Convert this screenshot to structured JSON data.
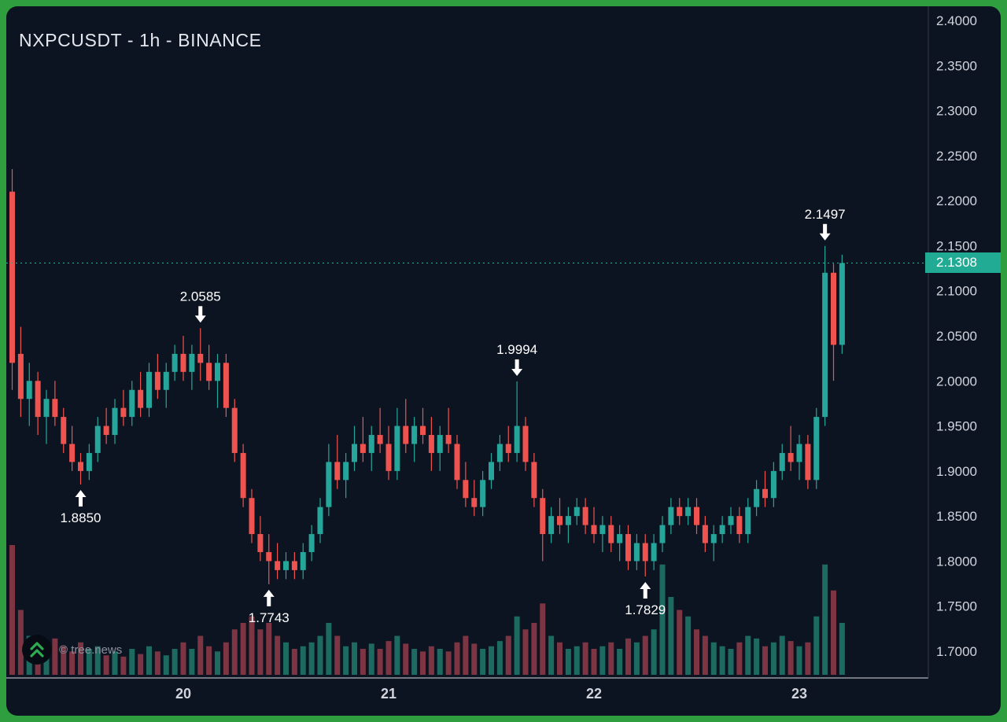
{
  "header": {
    "title": "NXPCUSDT - 1h - BINANCE"
  },
  "watermark": {
    "label": "© tree.news",
    "logo": "double-chevron-up-icon"
  },
  "colors": {
    "frame_green": "#2e9e3e",
    "background": "#0d1421",
    "bullish": "#26a69a",
    "bearish": "#ef5350",
    "volume_bullish": "#1d6a60",
    "volume_bearish": "#7d3543",
    "axis_text": "#d1d4dc",
    "axis_line": "#aeb2bc",
    "separator": "#363a45",
    "current_price": "#22ab94",
    "annotation": "#ffffff",
    "logo_green": "#2eac52"
  },
  "chart_data": {
    "type": "candlestick",
    "symbol": "NXPCUSDT",
    "interval": "1h",
    "exchange": "BINANCE",
    "title": "NXPCUSDT - 1h - BINANCE",
    "grid": false,
    "price_axis": {
      "min": 1.7,
      "max": 2.4,
      "ticks": [
        {
          "value": 2.4,
          "label": "2.4000"
        },
        {
          "value": 2.35,
          "label": "2.3500"
        },
        {
          "value": 2.3,
          "label": "2.3000"
        },
        {
          "value": 2.25,
          "label": "2.2500"
        },
        {
          "value": 2.2,
          "label": "2.2000"
        },
        {
          "value": 2.15,
          "label": "2.1500"
        },
        {
          "value": 2.1,
          "label": "2.1000"
        },
        {
          "value": 2.05,
          "label": "2.0500"
        },
        {
          "value": 2.0,
          "label": "2.0000"
        },
        {
          "value": 1.95,
          "label": "1.9500"
        },
        {
          "value": 1.9,
          "label": "1.9000"
        },
        {
          "value": 1.85,
          "label": "1.8500"
        },
        {
          "value": 1.8,
          "label": "1.8000"
        },
        {
          "value": 1.75,
          "label": "1.7500"
        },
        {
          "value": 1.7,
          "label": "1.7000"
        }
      ]
    },
    "time_axis": {
      "ticks": [
        {
          "index": 20,
          "label": "20"
        },
        {
          "index": 44,
          "label": "21"
        },
        {
          "index": 68,
          "label": "22"
        },
        {
          "index": 92,
          "label": "23"
        }
      ]
    },
    "current_price": 2.1308,
    "current_price_label": "2.1308",
    "annotations": [
      {
        "index": 8,
        "direction": "up",
        "price": 1.885,
        "label": "1.8850"
      },
      {
        "index": 22,
        "direction": "down",
        "price": 2.0585,
        "label": "2.0585"
      },
      {
        "index": 30,
        "direction": "up",
        "price": 1.7743,
        "label": "1.7743"
      },
      {
        "index": 59,
        "direction": "down",
        "price": 1.9994,
        "label": "1.9994"
      },
      {
        "index": 74,
        "direction": "up",
        "price": 1.7829,
        "label": "1.7829"
      },
      {
        "index": 95,
        "direction": "down",
        "price": 2.1497,
        "label": "2.1497"
      }
    ],
    "candles": [
      [
        2.21,
        2.235,
        1.99,
        2.02
      ],
      [
        2.03,
        2.06,
        1.96,
        1.98
      ],
      [
        1.98,
        2.02,
        1.95,
        2.0
      ],
      [
        2.0,
        2.01,
        1.94,
        1.96
      ],
      [
        1.96,
        1.99,
        1.93,
        1.98
      ],
      [
        1.98,
        2.0,
        1.95,
        1.96
      ],
      [
        1.96,
        1.97,
        1.92,
        1.93
      ],
      [
        1.93,
        1.95,
        1.9,
        1.91
      ],
      [
        1.91,
        1.92,
        1.885,
        1.9
      ],
      [
        1.9,
        1.93,
        1.89,
        1.92
      ],
      [
        1.92,
        1.96,
        1.91,
        1.95
      ],
      [
        1.95,
        1.97,
        1.93,
        1.94
      ],
      [
        1.94,
        1.98,
        1.93,
        1.97
      ],
      [
        1.97,
        1.99,
        1.95,
        1.96
      ],
      [
        1.96,
        2.0,
        1.95,
        1.99
      ],
      [
        1.99,
        2.01,
        1.96,
        1.97
      ],
      [
        1.97,
        2.02,
        1.96,
        2.01
      ],
      [
        2.01,
        2.03,
        1.98,
        1.99
      ],
      [
        1.99,
        2.02,
        1.97,
        2.01
      ],
      [
        2.01,
        2.04,
        2.0,
        2.03
      ],
      [
        2.03,
        2.05,
        2.0,
        2.01
      ],
      [
        2.01,
        2.04,
        1.99,
        2.03
      ],
      [
        2.03,
        2.0585,
        2.0,
        2.02
      ],
      [
        2.02,
        2.04,
        1.99,
        2.0
      ],
      [
        2.0,
        2.03,
        1.97,
        2.02
      ],
      [
        2.02,
        2.03,
        1.96,
        1.97
      ],
      [
        1.97,
        1.98,
        1.91,
        1.92
      ],
      [
        1.92,
        1.93,
        1.86,
        1.87
      ],
      [
        1.87,
        1.88,
        1.82,
        1.83
      ],
      [
        1.83,
        1.85,
        1.8,
        1.81
      ],
      [
        1.81,
        1.83,
        1.7743,
        1.8
      ],
      [
        1.8,
        1.82,
        1.78,
        1.79
      ],
      [
        1.79,
        1.81,
        1.78,
        1.8
      ],
      [
        1.8,
        1.81,
        1.78,
        1.79
      ],
      [
        1.79,
        1.82,
        1.78,
        1.81
      ],
      [
        1.81,
        1.84,
        1.8,
        1.83
      ],
      [
        1.83,
        1.87,
        1.82,
        1.86
      ],
      [
        1.86,
        1.93,
        1.85,
        1.91
      ],
      [
        1.91,
        1.94,
        1.88,
        1.89
      ],
      [
        1.89,
        1.92,
        1.87,
        1.91
      ],
      [
        1.91,
        1.95,
        1.9,
        1.93
      ],
      [
        1.93,
        1.96,
        1.91,
        1.92
      ],
      [
        1.92,
        1.95,
        1.9,
        1.94
      ],
      [
        1.94,
        1.97,
        1.92,
        1.93
      ],
      [
        1.93,
        1.95,
        1.89,
        1.9
      ],
      [
        1.9,
        1.97,
        1.89,
        1.95
      ],
      [
        1.95,
        1.98,
        1.92,
        1.93
      ],
      [
        1.93,
        1.96,
        1.91,
        1.95
      ],
      [
        1.95,
        1.97,
        1.93,
        1.94
      ],
      [
        1.94,
        1.96,
        1.9,
        1.92
      ],
      [
        1.92,
        1.95,
        1.9,
        1.94
      ],
      [
        1.94,
        1.97,
        1.92,
        1.93
      ],
      [
        1.93,
        1.94,
        1.88,
        1.89
      ],
      [
        1.89,
        1.91,
        1.86,
        1.87
      ],
      [
        1.87,
        1.89,
        1.85,
        1.86
      ],
      [
        1.86,
        1.9,
        1.85,
        1.89
      ],
      [
        1.89,
        1.92,
        1.88,
        1.91
      ],
      [
        1.91,
        1.94,
        1.9,
        1.93
      ],
      [
        1.93,
        1.95,
        1.91,
        1.92
      ],
      [
        1.92,
        1.9994,
        1.91,
        1.95
      ],
      [
        1.95,
        1.96,
        1.9,
        1.91
      ],
      [
        1.91,
        1.92,
        1.86,
        1.87
      ],
      [
        1.87,
        1.88,
        1.8,
        1.83
      ],
      [
        1.83,
        1.86,
        1.82,
        1.85
      ],
      [
        1.85,
        1.87,
        1.83,
        1.84
      ],
      [
        1.84,
        1.86,
        1.82,
        1.85
      ],
      [
        1.85,
        1.87,
        1.84,
        1.86
      ],
      [
        1.86,
        1.87,
        1.83,
        1.84
      ],
      [
        1.84,
        1.86,
        1.82,
        1.83
      ],
      [
        1.83,
        1.85,
        1.81,
        1.84
      ],
      [
        1.84,
        1.85,
        1.81,
        1.82
      ],
      [
        1.82,
        1.84,
        1.8,
        1.83
      ],
      [
        1.83,
        1.84,
        1.79,
        1.8
      ],
      [
        1.8,
        1.83,
        1.79,
        1.82
      ],
      [
        1.82,
        1.83,
        1.7829,
        1.8
      ],
      [
        1.8,
        1.83,
        1.79,
        1.82
      ],
      [
        1.82,
        1.85,
        1.81,
        1.84
      ],
      [
        1.84,
        1.87,
        1.83,
        1.86
      ],
      [
        1.86,
        1.87,
        1.84,
        1.85
      ],
      [
        1.85,
        1.87,
        1.84,
        1.86
      ],
      [
        1.86,
        1.87,
        1.83,
        1.84
      ],
      [
        1.84,
        1.85,
        1.81,
        1.82
      ],
      [
        1.82,
        1.84,
        1.8,
        1.83
      ],
      [
        1.83,
        1.85,
        1.82,
        1.84
      ],
      [
        1.84,
        1.86,
        1.83,
        1.85
      ],
      [
        1.85,
        1.86,
        1.82,
        1.83
      ],
      [
        1.83,
        1.87,
        1.82,
        1.86
      ],
      [
        1.86,
        1.89,
        1.85,
        1.88
      ],
      [
        1.88,
        1.9,
        1.86,
        1.87
      ],
      [
        1.87,
        1.91,
        1.86,
        1.9
      ],
      [
        1.9,
        1.93,
        1.89,
        1.92
      ],
      [
        1.92,
        1.95,
        1.9,
        1.91
      ],
      [
        1.91,
        1.94,
        1.89,
        1.93
      ],
      [
        1.93,
        1.94,
        1.88,
        1.89
      ],
      [
        1.89,
        1.97,
        1.88,
        1.96
      ],
      [
        1.96,
        2.1497,
        1.95,
        2.12
      ],
      [
        2.12,
        2.13,
        2.0,
        2.04
      ],
      [
        2.04,
        2.14,
        2.03,
        2.1308
      ]
    ],
    "volumes": [
      1.0,
      0.5,
      0.3,
      0.25,
      0.2,
      0.28,
      0.22,
      0.18,
      0.25,
      0.2,
      0.22,
      0.15,
      0.18,
      0.14,
      0.2,
      0.16,
      0.22,
      0.18,
      0.15,
      0.2,
      0.25,
      0.2,
      0.3,
      0.22,
      0.18,
      0.25,
      0.35,
      0.4,
      0.45,
      0.35,
      0.4,
      0.3,
      0.25,
      0.2,
      0.22,
      0.25,
      0.3,
      0.4,
      0.3,
      0.22,
      0.25,
      0.2,
      0.24,
      0.2,
      0.26,
      0.3,
      0.24,
      0.2,
      0.18,
      0.22,
      0.2,
      0.18,
      0.25,
      0.3,
      0.24,
      0.2,
      0.22,
      0.26,
      0.3,
      0.45,
      0.35,
      0.4,
      0.55,
      0.3,
      0.25,
      0.2,
      0.22,
      0.25,
      0.2,
      0.22,
      0.25,
      0.2,
      0.28,
      0.25,
      0.3,
      0.35,
      0.85,
      0.6,
      0.5,
      0.45,
      0.35,
      0.3,
      0.25,
      0.22,
      0.2,
      0.25,
      0.3,
      0.28,
      0.22,
      0.25,
      0.3,
      0.26,
      0.22,
      0.25,
      0.45,
      0.85,
      0.65,
      0.4
    ]
  }
}
